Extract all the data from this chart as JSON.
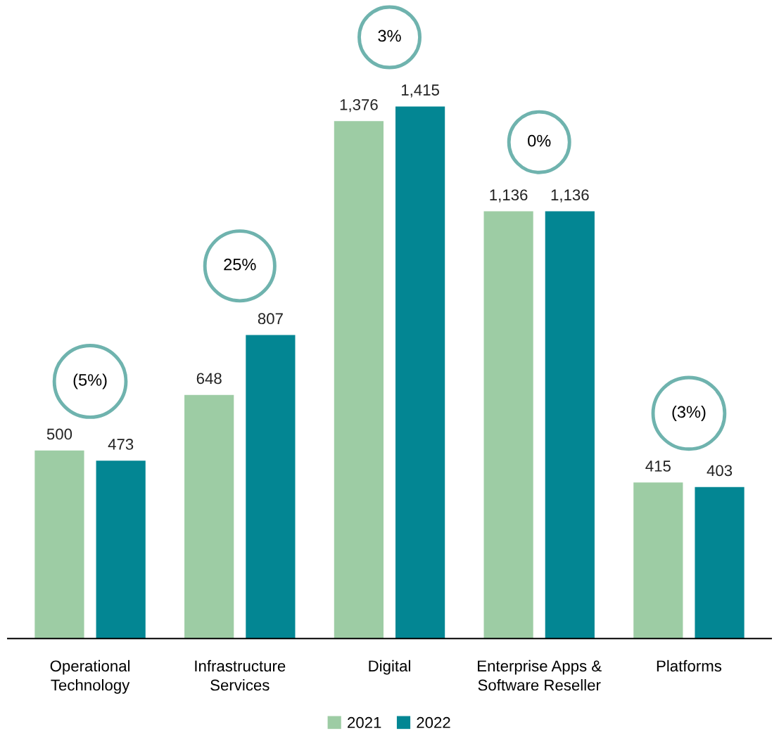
{
  "chart_data": {
    "type": "bar",
    "categories": [
      "Operational Technology",
      "Infrastructure Services",
      "Digital",
      "Enterprise Apps & Software Reseller",
      "Platforms"
    ],
    "series": [
      {
        "name": "2021",
        "color": "#9dcca4",
        "values": [
          500,
          648,
          1376,
          1136,
          415
        ],
        "value_labels": [
          "500",
          "648",
          "1,376",
          "1,136",
          "415"
        ]
      },
      {
        "name": "2022",
        "color": "#038693",
        "values": [
          473,
          807,
          1415,
          1136,
          403
        ],
        "value_labels": [
          "473",
          "807",
          "1,415",
          "1,136",
          "403"
        ]
      }
    ],
    "annotations": [
      "(5%)",
      "25%",
      "3%",
      "0%",
      "(3%)"
    ],
    "grid": false,
    "legend": "bottom",
    "tick_labels": "x"
  }
}
